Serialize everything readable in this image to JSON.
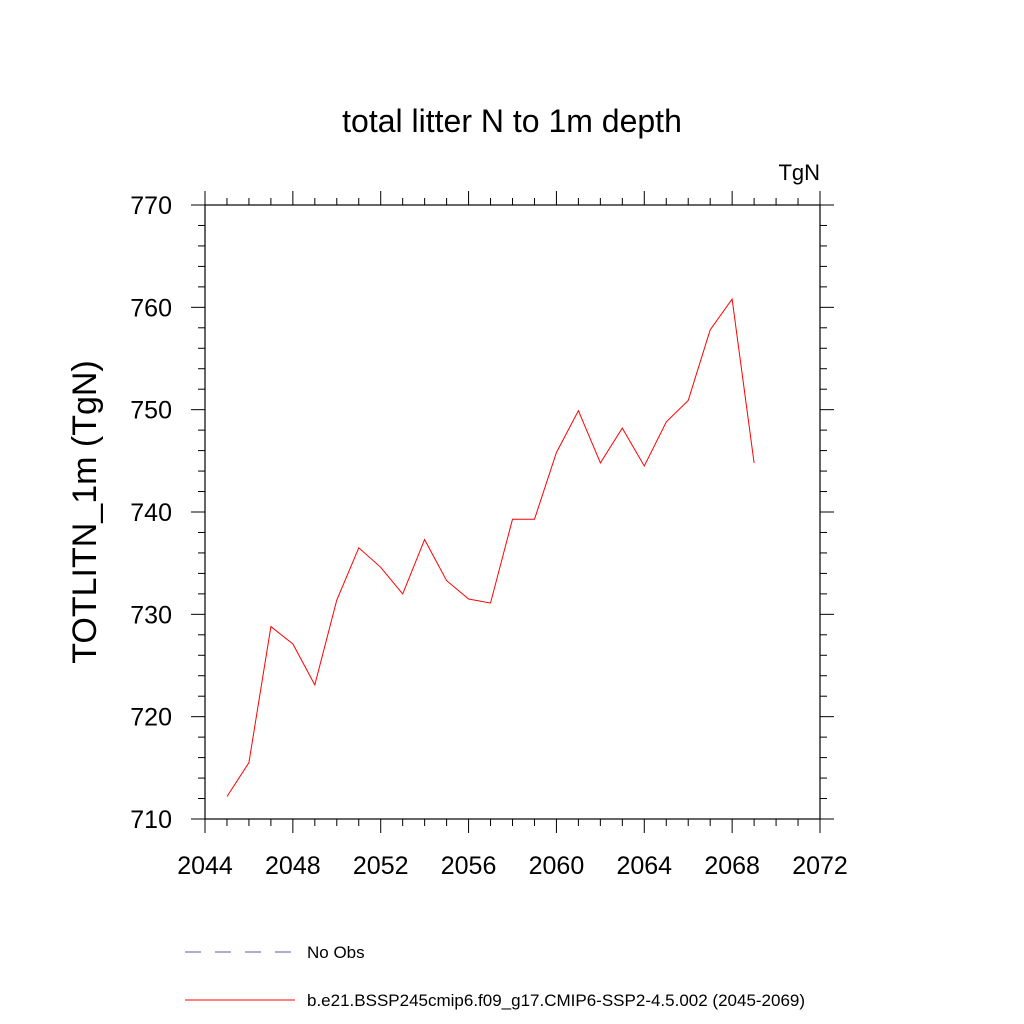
{
  "chart_data": {
    "type": "line",
    "title": "total litter N to 1m depth",
    "units_label": "TgN",
    "xlabel": "",
    "ylabel": "TOTLITN_1m  (TgN)",
    "xlim": [
      2044,
      2072
    ],
    "ylim": [
      710,
      770
    ],
    "x_ticks": [
      2044,
      2048,
      2052,
      2056,
      2060,
      2064,
      2068,
      2072
    ],
    "y_ticks": [
      710,
      720,
      730,
      740,
      750,
      760,
      770
    ],
    "grid": false,
    "legend_position": "bottom",
    "series": [
      {
        "name": "b.e21.BSSP245cmip6.f09_g17.CMIP6-SSP2-4.5.002 (2045-2069)",
        "color": "#ff0000",
        "style": "solid",
        "x": [
          2045,
          2046,
          2047,
          2048,
          2049,
          2050,
          2051,
          2052,
          2053,
          2054,
          2055,
          2056,
          2057,
          2058,
          2059,
          2060,
          2061,
          2062,
          2063,
          2064,
          2065,
          2066,
          2067,
          2068,
          2069
        ],
        "y": [
          712.2,
          715.5,
          728.8,
          727.1,
          723.1,
          731.4,
          736.5,
          734.6,
          732.0,
          737.3,
          733.3,
          731.5,
          731.1,
          739.3,
          739.3,
          745.8,
          749.9,
          744.8,
          748.2,
          744.5,
          748.8,
          750.9,
          757.8,
          760.8,
          744.8
        ]
      },
      {
        "name": "No Obs",
        "color": "#5a5aaa",
        "style": "dashed",
        "x": [],
        "y": []
      }
    ]
  }
}
